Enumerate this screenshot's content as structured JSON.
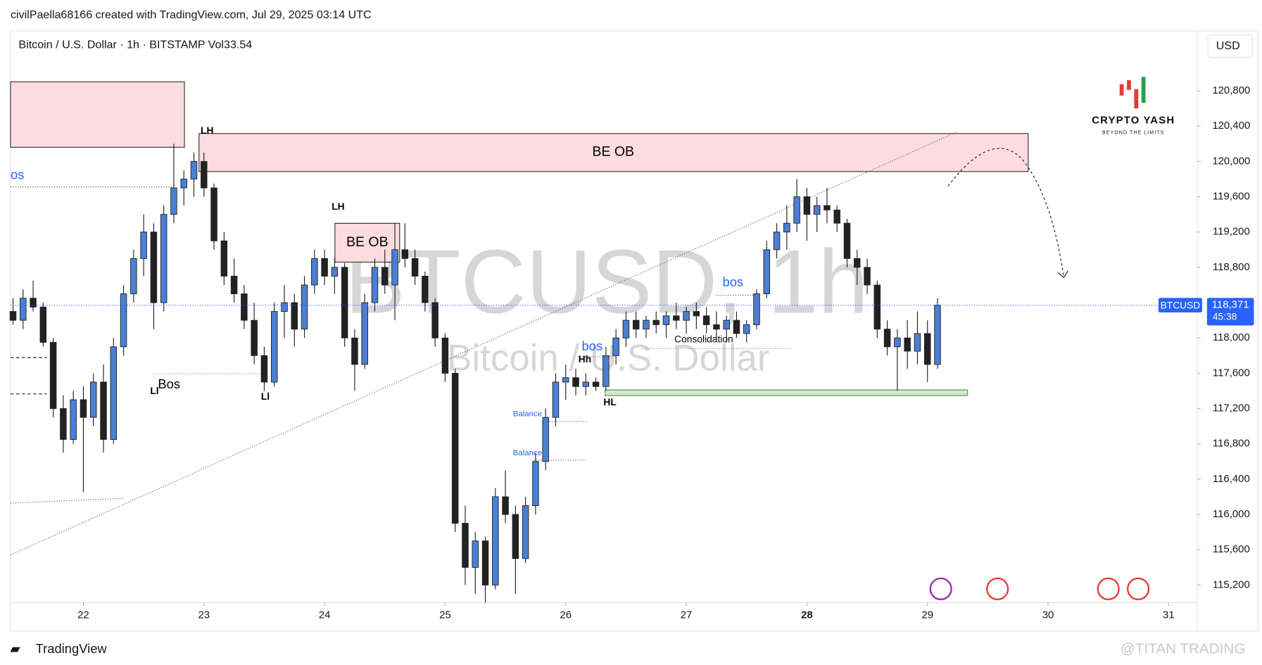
{
  "header": {
    "credit": "civilPaella68166 created with TradingView.com, Jul 29, 2025 03:14 UTC",
    "currency": "USD"
  },
  "watermark": {
    "symbol": "BTCUSD, 1h",
    "name": "Bitcoin / U.S. Dollar"
  },
  "logo": {
    "title": "CRYPTO YASH",
    "tagline": "BEYOND THE LIMITS"
  },
  "footer": {
    "brand": "TradingView",
    "source": "@TITAN TRADING"
  },
  "annotations": [
    "BE OB",
    "BE OB",
    "LH",
    "LH",
    "os",
    "Bos",
    "Ll",
    "Ll",
    "bos",
    "bos",
    "Hh",
    "HL",
    "Balance",
    "Balance",
    "Consolidation"
  ],
  "chart_data": {
    "type": "candlestick",
    "title": "Bitcoin / U.S. Dollar · 1h · BITSTAMP  Vol33.54",
    "symbol": "BTCUSD",
    "countdown": "45:38",
    "up_color": "#4a7fd4",
    "down_color": "#222222",
    "xlim": [
      -14.5,
      221.7
    ],
    "ylim": [
      114680,
      121480
    ],
    "xticks": [
      {
        "value": 0,
        "label": "22"
      },
      {
        "value": 24,
        "label": "23"
      },
      {
        "value": 48,
        "label": "24"
      },
      {
        "value": 72,
        "label": "25"
      },
      {
        "value": 96,
        "label": "26"
      },
      {
        "value": 120,
        "label": "27"
      },
      {
        "value": 144,
        "label": "28"
      },
      {
        "value": 168,
        "label": "29"
      },
      {
        "value": 192,
        "label": "30"
      },
      {
        "value": 216,
        "label": "31"
      }
    ],
    "yticks": [
      {
        "value": 115200,
        "label": "115,200"
      },
      {
        "value": 115600,
        "label": "115,600"
      },
      {
        "value": 116000,
        "label": "116,000"
      },
      {
        "value": 116400,
        "label": "116,400"
      },
      {
        "value": 116800,
        "label": "116,800"
      },
      {
        "value": 117200,
        "label": "117,200"
      },
      {
        "value": 117600,
        "label": "117,600"
      },
      {
        "value": 118000,
        "label": "118,000"
      },
      {
        "value": 118400,
        "label": "118,400"
      },
      {
        "value": 118800,
        "label": "118,800"
      },
      {
        "value": 119200,
        "label": "119,200"
      },
      {
        "value": 119600,
        "label": "119,600"
      },
      {
        "value": 120000,
        "label": "120,000"
      },
      {
        "value": 120400,
        "label": "120,400"
      },
      {
        "value": 120800,
        "label": "120,800"
      }
    ],
    "last_price": {
      "value": 118371,
      "label": "118,371"
    },
    "x": [
      -14,
      -12,
      -10,
      -8,
      -6,
      -4,
      -2,
      0,
      2,
      4,
      6,
      8,
      10,
      12,
      14,
      16,
      18,
      20,
      22,
      24,
      26,
      28,
      30,
      32,
      34,
      36,
      38,
      40,
      42,
      44,
      46,
      48,
      50,
      52,
      54,
      56,
      58,
      60,
      62,
      64,
      66,
      68,
      70,
      72,
      74,
      76,
      78,
      80,
      82,
      84,
      86,
      88,
      90,
      92,
      94,
      96,
      98,
      100,
      102,
      104,
      106,
      108,
      110,
      112,
      114,
      116,
      118,
      120,
      122,
      124,
      126,
      128,
      130,
      132,
      134,
      136,
      138,
      140,
      142,
      144,
      146,
      148,
      150,
      152,
      154,
      156,
      158,
      160,
      162,
      164,
      166,
      168,
      170
    ],
    "ohlc": [
      [
        118300,
        118450,
        118150,
        118200
      ],
      [
        118200,
        118550,
        118100,
        118450
      ],
      [
        118450,
        118650,
        118300,
        118350
      ],
      [
        118350,
        118400,
        117900,
        117950
      ],
      [
        117950,
        118000,
        117100,
        117200
      ],
      [
        117200,
        117350,
        116700,
        116850
      ],
      [
        116850,
        117400,
        116800,
        117300
      ],
      [
        117300,
        117450,
        116250,
        117100
      ],
      [
        117100,
        117600,
        117000,
        117500
      ],
      [
        117500,
        117700,
        116700,
        116850
      ],
      [
        116850,
        118000,
        116800,
        117900
      ],
      [
        117900,
        118600,
        117800,
        118500
      ],
      [
        118500,
        119000,
        118400,
        118900
      ],
      [
        118900,
        119400,
        118700,
        119200
      ],
      [
        119200,
        119300,
        118100,
        118400
      ],
      [
        118400,
        119500,
        118300,
        119400
      ],
      [
        119400,
        120200,
        119300,
        119700
      ],
      [
        119700,
        119900,
        119500,
        119800
      ],
      [
        119800,
        120100,
        119600,
        120000
      ],
      [
        120000,
        120100,
        119600,
        119700
      ],
      [
        119700,
        119750,
        119000,
        119100
      ],
      [
        119100,
        119200,
        118600,
        118700
      ],
      [
        118700,
        118900,
        118400,
        118500
      ],
      [
        118500,
        118600,
        118100,
        118200
      ],
      [
        118200,
        118400,
        117700,
        117800
      ],
      [
        117800,
        117900,
        117400,
        117500
      ],
      [
        117500,
        118400,
        117450,
        118300
      ],
      [
        118300,
        118600,
        118000,
        118400
      ],
      [
        118400,
        118500,
        117900,
        118100
      ],
      [
        118100,
        118700,
        118000,
        118600
      ],
      [
        118600,
        119000,
        118500,
        118900
      ],
      [
        118900,
        119000,
        118600,
        118700
      ],
      [
        118700,
        118900,
        118500,
        118800
      ],
      [
        118800,
        118850,
        117900,
        118000
      ],
      [
        118000,
        118100,
        117400,
        117700
      ],
      [
        117700,
        118500,
        117650,
        118400
      ],
      [
        118400,
        118900,
        118300,
        118800
      ],
      [
        118800,
        119000,
        118500,
        118600
      ],
      [
        118600,
        119300,
        118200,
        119000
      ],
      [
        119000,
        119300,
        118800,
        118900
      ],
      [
        118900,
        119000,
        118600,
        118700
      ],
      [
        118700,
        118750,
        118300,
        118400
      ],
      [
        118400,
        118450,
        117900,
        118000
      ],
      [
        118000,
        118050,
        117500,
        117600
      ],
      [
        117600,
        117650,
        115800,
        115900
      ],
      [
        115900,
        116100,
        115200,
        115400
      ],
      [
        115400,
        115800,
        115100,
        115700
      ],
      [
        115700,
        115750,
        115000,
        115200
      ],
      [
        115200,
        116300,
        115150,
        116200
      ],
      [
        116200,
        116500,
        115900,
        116000
      ],
      [
        116000,
        116100,
        115100,
        115500
      ],
      [
        115500,
        116200,
        115450,
        116100
      ],
      [
        116100,
        116700,
        116000,
        116600
      ],
      [
        116600,
        117200,
        116500,
        117100
      ],
      [
        117100,
        117600,
        117000,
        117500
      ],
      [
        117500,
        117700,
        117300,
        117550
      ],
      [
        117550,
        117650,
        117350,
        117450
      ],
      [
        117450,
        117600,
        117350,
        117500
      ],
      [
        117500,
        117550,
        117400,
        117450
      ],
      [
        117450,
        117900,
        117400,
        117800
      ],
      [
        117800,
        118100,
        117700,
        118000
      ],
      [
        118000,
        118300,
        117900,
        118200
      ],
      [
        118200,
        118300,
        118000,
        118100
      ],
      [
        118100,
        118250,
        118000,
        118200
      ],
      [
        118200,
        118300,
        118050,
        118150
      ],
      [
        118150,
        118300,
        118000,
        118250
      ],
      [
        118250,
        118400,
        118100,
        118200
      ],
      [
        118200,
        118350,
        118050,
        118300
      ],
      [
        118300,
        118400,
        118100,
        118250
      ],
      [
        118250,
        118350,
        118050,
        118150
      ],
      [
        118150,
        118300,
        118000,
        118100
      ],
      [
        118100,
        118250,
        117950,
        118200
      ],
      [
        118200,
        118300,
        118000,
        118050
      ],
      [
        118050,
        118200,
        117950,
        118150
      ],
      [
        118150,
        118550,
        118100,
        118500
      ],
      [
        118500,
        119100,
        118450,
        119000
      ],
      [
        119000,
        119300,
        118900,
        119200
      ],
      [
        119200,
        119500,
        119000,
        119300
      ],
      [
        119300,
        119800,
        119200,
        119600
      ],
      [
        119600,
        119700,
        119100,
        119400
      ],
      [
        119400,
        119600,
        119200,
        119500
      ],
      [
        119500,
        119700,
        119300,
        119450
      ],
      [
        119450,
        119500,
        119200,
        119300
      ],
      [
        119300,
        119350,
        118800,
        118900
      ],
      [
        118900,
        119000,
        118600,
        118800
      ],
      [
        118800,
        118900,
        118500,
        118600
      ],
      [
        118600,
        118650,
        118000,
        118100
      ],
      [
        118100,
        118200,
        117800,
        117900
      ],
      [
        117900,
        118100,
        117400,
        118000
      ],
      [
        118000,
        118200,
        117650,
        117850
      ],
      [
        117850,
        118300,
        117700,
        118050
      ],
      [
        118050,
        118200,
        117500,
        117700
      ],
      [
        117700,
        118450,
        117650,
        118371
      ]
    ]
  }
}
